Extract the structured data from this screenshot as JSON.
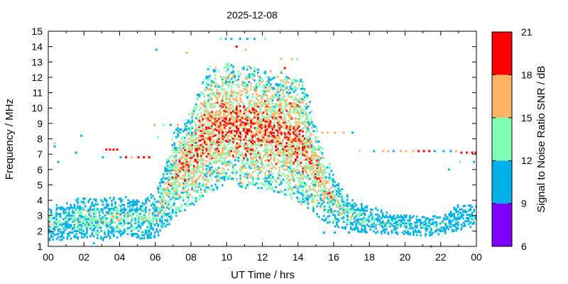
{
  "chart_data": {
    "type": "scatter",
    "title": "2025-12-08",
    "xlabel": "UT Time / hrs",
    "ylabel": "Frequency / MHz",
    "xlim": [
      0,
      24
    ],
    "ylim": [
      1,
      15
    ],
    "x_ticks": [
      "00",
      "02",
      "04",
      "06",
      "08",
      "10",
      "12",
      "14",
      "16",
      "18",
      "20",
      "22",
      "00"
    ],
    "y_ticks": [
      "1",
      "2",
      "3",
      "4",
      "5",
      "6",
      "7",
      "8",
      "9",
      "10",
      "11",
      "12",
      "13",
      "14",
      "15"
    ],
    "colorbar": {
      "label": "Signal to Noise Ratio SNR / dB",
      "ticks": [
        "6",
        "9",
        "12",
        "15",
        "18",
        "21"
      ],
      "bins": [
        {
          "min": 6,
          "max": 9,
          "color": "#8000ff"
        },
        {
          "min": 9,
          "max": 12,
          "color": "#00b0e8"
        },
        {
          "min": 12,
          "max": 15,
          "color": "#80ffb4"
        },
        {
          "min": 15,
          "max": 18,
          "color": "#ffb464"
        },
        {
          "min": 18,
          "max": 21,
          "color": "#ff0000"
        }
      ]
    },
    "profile": {
      "description": "band",
      "hours": [
        0.0,
        1.0,
        2.0,
        3.0,
        4.0,
        5.0,
        6.0,
        6.5,
        7.0,
        7.5,
        8.0,
        8.5,
        9.0,
        9.5,
        10.0,
        10.5,
        11.0,
        11.5,
        12.0,
        12.5,
        13.0,
        13.5,
        14.0,
        14.5,
        15.0,
        15.5,
        16.0,
        16.5,
        17.0,
        18.0,
        19.0,
        20.0,
        21.0,
        22.0,
        23.0,
        24.0
      ],
      "band_low": [
        1.3,
        1.5,
        1.5,
        1.4,
        1.5,
        1.5,
        1.6,
        2.2,
        2.8,
        3.3,
        3.6,
        4.2,
        4.6,
        4.8,
        5.0,
        5.0,
        4.8,
        4.8,
        4.8,
        4.6,
        4.5,
        4.2,
        3.8,
        3.5,
        3.0,
        2.6,
        2.3,
        2.2,
        2.0,
        1.9,
        1.8,
        1.8,
        1.7,
        1.8,
        2.1,
        2.2
      ],
      "band_high": [
        3.5,
        4.0,
        4.2,
        4.1,
        4.3,
        4.1,
        4.5,
        6.2,
        8.5,
        9.0,
        10.2,
        11.5,
        12.8,
        12.6,
        13.0,
        12.5,
        12.8,
        12.6,
        12.5,
        12.0,
        12.5,
        12.0,
        12.3,
        10.8,
        8.8,
        7.0,
        5.5,
        4.6,
        4.0,
        3.6,
        3.2,
        3.1,
        3.0,
        3.0,
        3.8,
        3.6
      ],
      "peak_snr": [
        15,
        14,
        16,
        16,
        16,
        15,
        16,
        17,
        18,
        19,
        19,
        20,
        20,
        20,
        20,
        20,
        20,
        20,
        20,
        20,
        20,
        20,
        20,
        19,
        19,
        18,
        17,
        16,
        15,
        14,
        14,
        13,
        13,
        13,
        13,
        13
      ]
    },
    "isolated_points": [
      {
        "x": 0.3,
        "y": 7.7,
        "snr": 13
      },
      {
        "x": 0.3,
        "y": 7.5,
        "snr": 10
      },
      {
        "x": 1.5,
        "y": 7.1,
        "snr": 10
      },
      {
        "x": 1.8,
        "y": 8.2,
        "snr": 10
      },
      {
        "x": 3.0,
        "y": 6.8,
        "snr": 10
      },
      {
        "x": 3.2,
        "y": 7.3,
        "snr": 19
      },
      {
        "x": 3.4,
        "y": 7.3,
        "snr": 19
      },
      {
        "x": 3.6,
        "y": 7.3,
        "snr": 19
      },
      {
        "x": 3.8,
        "y": 7.3,
        "snr": 19
      },
      {
        "x": 4.0,
        "y": 6.8,
        "snr": 10
      },
      {
        "x": 4.3,
        "y": 6.8,
        "snr": 19
      },
      {
        "x": 4.6,
        "y": 6.8,
        "snr": 16
      },
      {
        "x": 5.0,
        "y": 6.8,
        "snr": 19
      },
      {
        "x": 5.3,
        "y": 6.8,
        "snr": 19
      },
      {
        "x": 5.6,
        "y": 6.8,
        "snr": 19
      },
      {
        "x": 5.9,
        "y": 8.9,
        "snr": 16
      },
      {
        "x": 6.0,
        "y": 13.8,
        "snr": 10
      },
      {
        "x": 6.1,
        "y": 8.1,
        "snr": 13
      },
      {
        "x": 6.4,
        "y": 8.9,
        "snr": 13
      },
      {
        "x": 6.8,
        "y": 8.9,
        "snr": 10
      },
      {
        "x": 7.2,
        "y": 8.9,
        "snr": 16
      },
      {
        "x": 7.7,
        "y": 13.6,
        "snr": 16
      },
      {
        "x": 9.6,
        "y": 14.5,
        "snr": 13
      },
      {
        "x": 9.9,
        "y": 14.5,
        "snr": 10
      },
      {
        "x": 10.2,
        "y": 14.5,
        "snr": 10
      },
      {
        "x": 10.7,
        "y": 14.5,
        "snr": 10
      },
      {
        "x": 11.1,
        "y": 14.5,
        "snr": 10
      },
      {
        "x": 11.5,
        "y": 14.5,
        "snr": 10
      },
      {
        "x": 10.5,
        "y": 14.0,
        "snr": 19
      },
      {
        "x": 11.0,
        "y": 13.8,
        "snr": 16
      },
      {
        "x": 12.1,
        "y": 14.5,
        "snr": 13
      },
      {
        "x": 12.4,
        "y": 12.4,
        "snr": 16
      },
      {
        "x": 13.0,
        "y": 13.2,
        "snr": 16
      },
      {
        "x": 13.6,
        "y": 13.2,
        "snr": 16
      },
      {
        "x": 13.9,
        "y": 13.2,
        "snr": 13
      },
      {
        "x": 13.2,
        "y": 12.6,
        "snr": 19
      },
      {
        "x": 15.3,
        "y": 8.4,
        "snr": 16
      },
      {
        "x": 15.6,
        "y": 8.4,
        "snr": 16
      },
      {
        "x": 16.0,
        "y": 8.4,
        "snr": 16
      },
      {
        "x": 16.5,
        "y": 8.4,
        "snr": 16
      },
      {
        "x": 17.0,
        "y": 8.4,
        "snr": 10
      },
      {
        "x": 17.4,
        "y": 7.2,
        "snr": 13
      },
      {
        "x": 18.2,
        "y": 7.2,
        "snr": 10
      },
      {
        "x": 18.7,
        "y": 7.2,
        "snr": 16
      },
      {
        "x": 19.0,
        "y": 7.2,
        "snr": 16
      },
      {
        "x": 19.3,
        "y": 7.2,
        "snr": 10
      },
      {
        "x": 19.7,
        "y": 7.2,
        "snr": 16
      },
      {
        "x": 20.0,
        "y": 7.2,
        "snr": 16
      },
      {
        "x": 20.4,
        "y": 7.2,
        "snr": 16
      },
      {
        "x": 20.7,
        "y": 7.2,
        "snr": 19
      },
      {
        "x": 21.0,
        "y": 7.2,
        "snr": 19
      },
      {
        "x": 21.3,
        "y": 7.2,
        "snr": 19
      },
      {
        "x": 21.6,
        "y": 7.2,
        "snr": 10
      },
      {
        "x": 22.1,
        "y": 7.2,
        "snr": 10
      },
      {
        "x": 22.5,
        "y": 7.2,
        "snr": 10
      },
      {
        "x": 22.8,
        "y": 7.2,
        "snr": 16
      },
      {
        "x": 23.1,
        "y": 7.1,
        "snr": 19
      },
      {
        "x": 23.4,
        "y": 7.1,
        "snr": 19
      },
      {
        "x": 23.7,
        "y": 7.1,
        "snr": 19
      },
      {
        "x": 23.9,
        "y": 7.1,
        "snr": 19
      },
      {
        "x": 23.0,
        "y": 6.5,
        "snr": 13
      },
      {
        "x": 23.8,
        "y": 6.5,
        "snr": 10
      },
      {
        "x": 22.4,
        "y": 6.0,
        "snr": 10
      },
      {
        "x": 16.8,
        "y": 1.9,
        "snr": 10
      },
      {
        "x": 16.0,
        "y": 1.9,
        "snr": 10
      },
      {
        "x": 15.4,
        "y": 1.9,
        "snr": 10
      },
      {
        "x": 21.4,
        "y": 1.0,
        "snr": 10
      },
      {
        "x": 18.8,
        "y": 1.9,
        "snr": 10
      },
      {
        "x": 0.5,
        "y": 6.5,
        "snr": 10
      },
      {
        "x": 2.5,
        "y": 1.2,
        "snr": 10
      }
    ]
  }
}
